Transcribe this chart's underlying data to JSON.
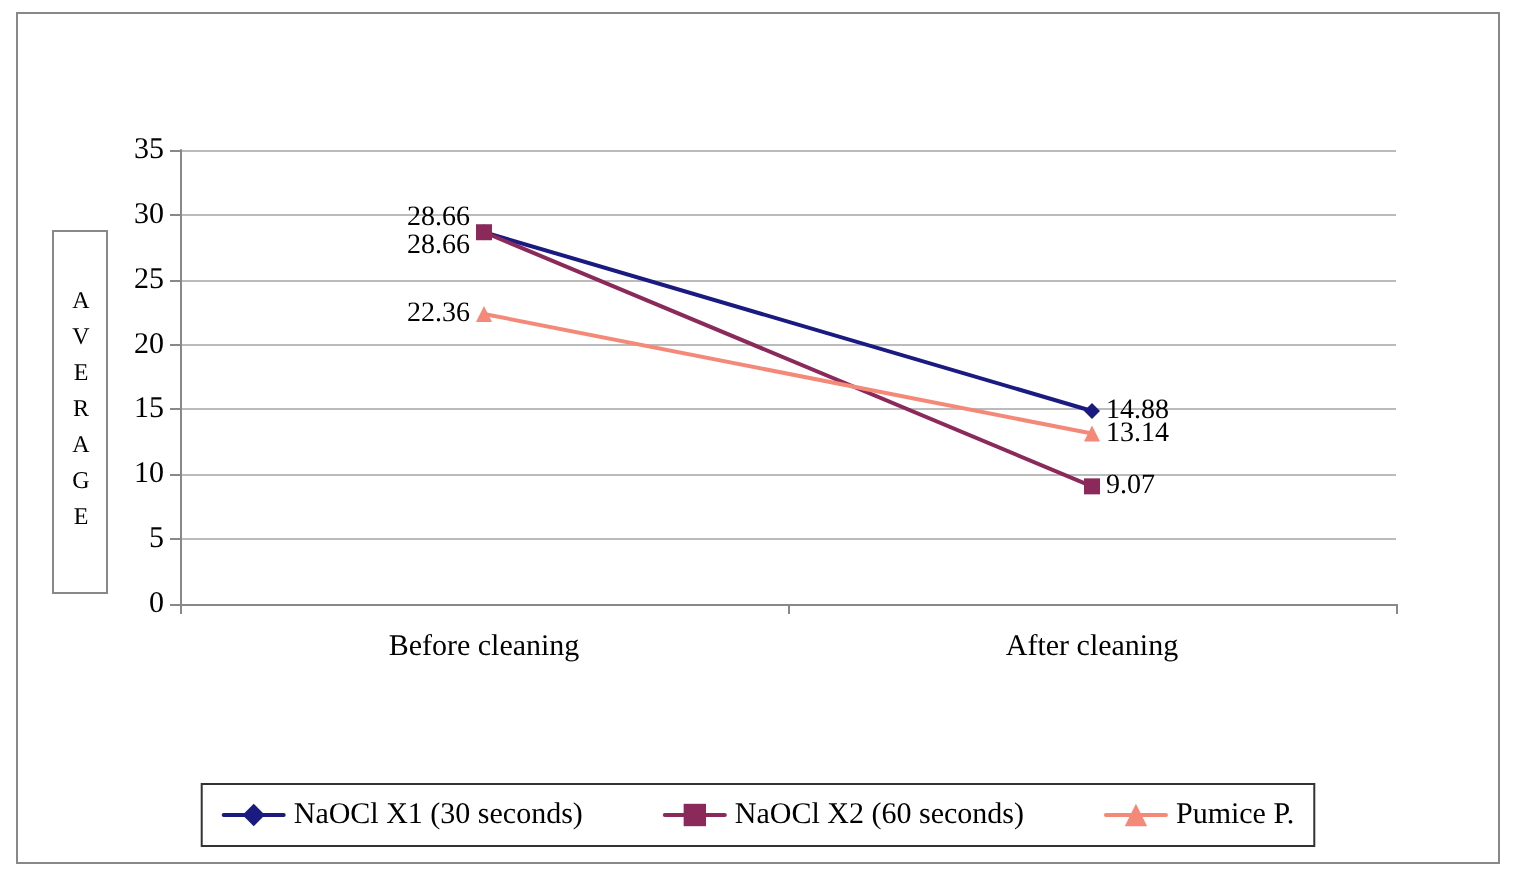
{
  "chart_data": {
    "type": "line",
    "ylabel": "AVERAGE",
    "categories": [
      "Before cleaning",
      "After cleaning"
    ],
    "series": [
      {
        "name": "NaOCl X1 (30 seconds)",
        "color": "#1a1a80",
        "marker": "diamond",
        "values": [
          28.66,
          14.88
        ]
      },
      {
        "name": "NaOCl X2 (60 seconds)",
        "color": "#8b2a5a",
        "marker": "square",
        "values": [
          28.66,
          9.07
        ]
      },
      {
        "name": "Pumice P.",
        "color": "#f4897a",
        "marker": "triangle",
        "values": [
          22.36,
          13.14
        ]
      }
    ],
    "ylim": [
      0,
      35
    ],
    "yticks": [
      0,
      5,
      10,
      15,
      20,
      25,
      30,
      35
    ],
    "grid": "y",
    "legend": "bottom",
    "data_labels": true,
    "line_style": "solid"
  }
}
